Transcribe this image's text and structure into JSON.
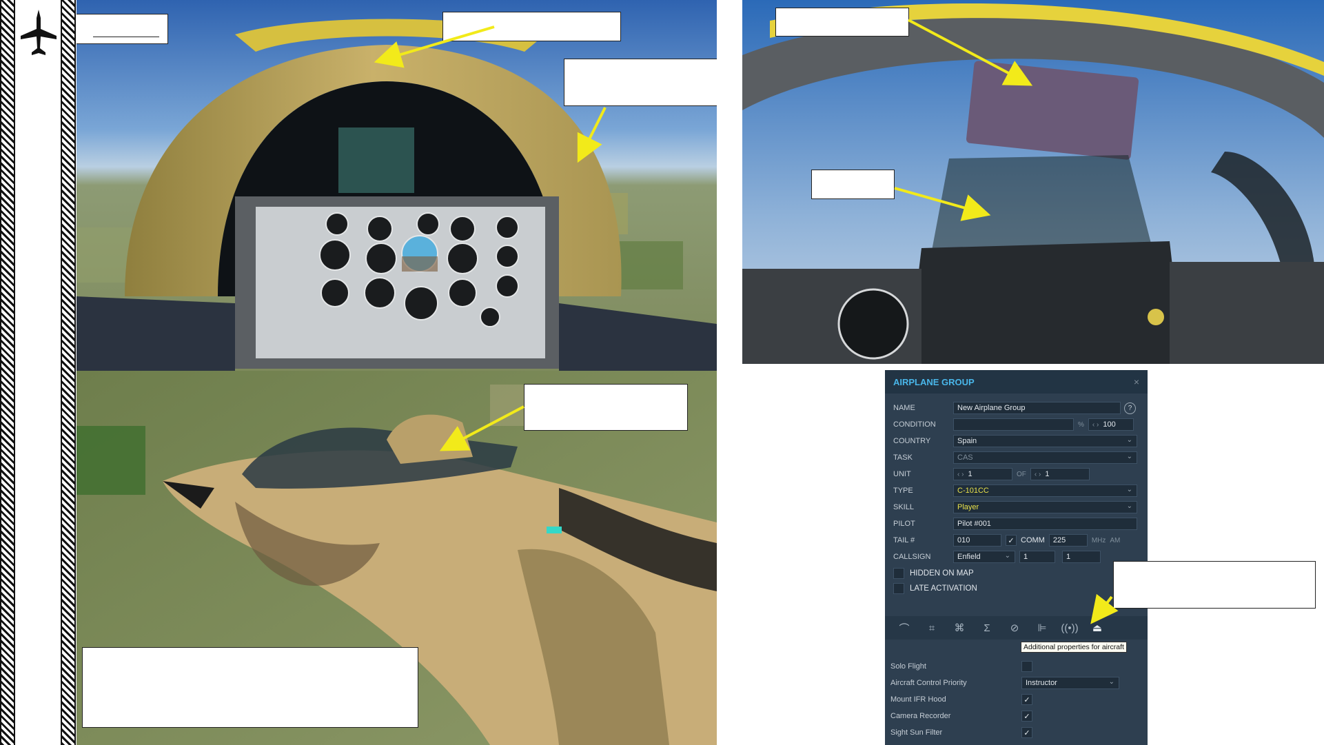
{
  "sidebar": {
    "logo_icon": "aircraft-silhouette-icon"
  },
  "callouts": {
    "title_box": "",
    "canopy_top": "",
    "canopy_side": "",
    "hood_box": "",
    "hood_frame": "",
    "aircraft_canopy": "",
    "tab_note": "",
    "bottom_note": ""
  },
  "editor": {
    "title": "AIRPLANE GROUP",
    "close_glyph": "×",
    "name_label": "NAME",
    "name_value": "New Airplane Group",
    "help_glyph": "?",
    "condition_label": "CONDITION",
    "condition_unit": "%",
    "condition_value": "100",
    "country_label": "COUNTRY",
    "country_value": "Spain",
    "task_label": "TASK",
    "task_value": "CAS",
    "unit_label": "UNIT",
    "unit_value": "1",
    "unit_of": "OF",
    "unit_total": "1",
    "type_label": "TYPE",
    "type_value": "C-101CC",
    "skill_label": "SKILL",
    "skill_value": "Player",
    "pilot_label": "PILOT",
    "pilot_value": "Pilot #001",
    "tail_label": "TAIL #",
    "tail_value": "010",
    "comm_label": "COMM",
    "comm_value": "225",
    "comm_unit": "MHz",
    "comm_mod": "AM",
    "callsign_label": "CALLSIGN",
    "callsign_value": "Enfield",
    "callsign_num1": "1",
    "callsign_num2": "1",
    "hidden_label": "HIDDEN ON MAP",
    "late_label": "LATE ACTIVATION",
    "tooltip": "Additional properties for aircraft",
    "props": {
      "solo_label": "Solo Flight",
      "priority_label": "Aircraft Control Priority",
      "priority_value": "Instructor",
      "ifr_label": "Mount IFR Hood",
      "camera_label": "Camera Recorder",
      "sun_label": "Sight Sun Filter"
    },
    "checked_glyph": "✓"
  },
  "colors": {
    "arrow": "#f2ea1a",
    "panel_bg": "#2e3f50",
    "title_blue": "#49b6e9",
    "type_yellow": "#e9e24a"
  }
}
